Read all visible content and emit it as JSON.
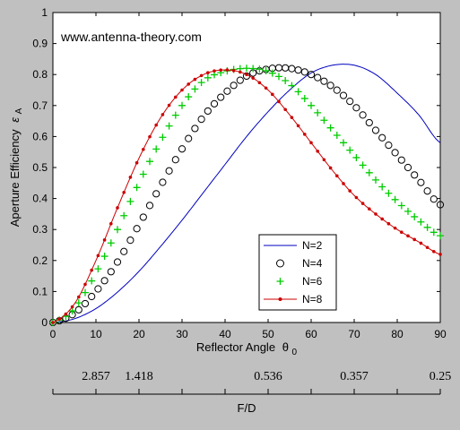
{
  "chart_data": {
    "type": "line",
    "watermark": "www.antenna-theory.com",
    "xlabel": "Reflector Angle",
    "xlabel_symbol": "θ",
    "xlabel_sub": "0",
    "ylabel": "Aperture Efficiency",
    "ylabel_symbol": "ε",
    "ylabel_sub": "A",
    "xlim": [
      0,
      90
    ],
    "ylim": [
      0,
      1
    ],
    "xticks": [
      0,
      10,
      20,
      30,
      40,
      50,
      60,
      70,
      80,
      90
    ],
    "yticks": [
      0,
      0.1,
      0.2,
      0.3,
      0.4,
      0.5,
      0.6,
      0.7,
      0.8,
      0.9,
      1
    ],
    "ytick_labels": [
      "0",
      "0.1",
      "0.2",
      "0.3",
      "0.4",
      "0.5",
      "0.6",
      "0.7",
      "0.8",
      "0.9",
      "1"
    ],
    "legend_position": "bottom-center",
    "series": [
      {
        "name": "N=2",
        "marker": "line",
        "color": "#0000c0",
        "x": [
          0,
          5,
          10,
          15,
          20,
          25,
          30,
          35,
          40,
          45,
          50,
          55,
          60,
          65,
          70,
          75,
          80,
          85,
          90
        ],
        "y": [
          0,
          0.012,
          0.045,
          0.098,
          0.165,
          0.245,
          0.33,
          0.42,
          0.51,
          0.6,
          0.68,
          0.75,
          0.805,
          0.83,
          0.83,
          0.8,
          0.74,
          0.67,
          0.58
        ]
      },
      {
        "name": "N=4",
        "marker": "circle",
        "color": "#000000",
        "x": [
          0,
          5,
          10,
          15,
          20,
          25,
          30,
          35,
          40,
          45,
          50,
          55,
          60,
          65,
          70,
          75,
          80,
          85,
          90
        ],
        "y": [
          0,
          0.03,
          0.1,
          0.195,
          0.315,
          0.44,
          0.56,
          0.665,
          0.74,
          0.795,
          0.818,
          0.82,
          0.8,
          0.76,
          0.7,
          0.62,
          0.54,
          0.46,
          0.38
        ]
      },
      {
        "name": "N=6",
        "marker": "plus",
        "color": "#00cc00",
        "x": [
          0,
          5,
          10,
          15,
          20,
          25,
          30,
          35,
          40,
          45,
          50,
          55,
          60,
          65,
          70,
          75,
          80,
          85,
          90
        ],
        "y": [
          0,
          0.045,
          0.16,
          0.3,
          0.45,
          0.585,
          0.7,
          0.78,
          0.81,
          0.82,
          0.81,
          0.77,
          0.7,
          0.62,
          0.54,
          0.46,
          0.39,
          0.33,
          0.28
        ]
      },
      {
        "name": "N=8",
        "marker": "dot",
        "color": "#cc0000",
        "x": [
          0,
          5,
          10,
          15,
          20,
          25,
          30,
          35,
          40,
          45,
          50,
          55,
          60,
          65,
          70,
          75,
          80,
          85,
          90
        ],
        "y": [
          0,
          0.06,
          0.2,
          0.37,
          0.53,
          0.66,
          0.75,
          0.8,
          0.815,
          0.8,
          0.75,
          0.67,
          0.58,
          0.49,
          0.41,
          0.35,
          0.3,
          0.26,
          0.22
        ]
      }
    ],
    "fd_axis": {
      "label": "F/D",
      "ticks": [
        {
          "angle": 10,
          "label": "2.857"
        },
        {
          "angle": 20,
          "label": "1.418"
        },
        {
          "angle": 50,
          "label": "0.536"
        },
        {
          "angle": 70,
          "label": "0.357"
        },
        {
          "angle": 90,
          "label": "0.25"
        }
      ]
    }
  },
  "colors": {
    "background": "#c0c0c0",
    "plot_area": "#ffffff"
  }
}
